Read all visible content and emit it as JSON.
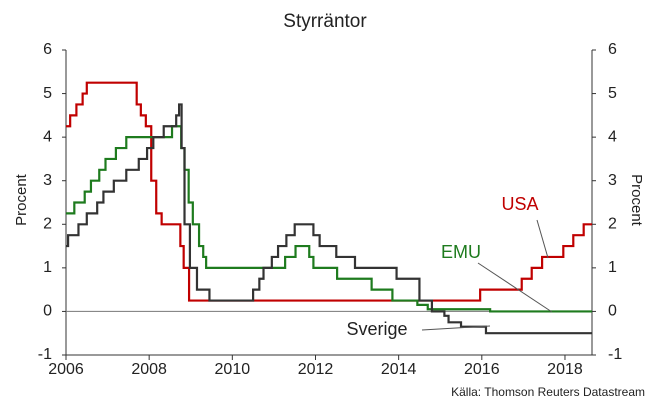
{
  "chart_data": {
    "type": "line",
    "title": "Styrräntor",
    "ylabel": "Procent",
    "y2label": "Procent",
    "source": "Källa: Thomson Reuters Datastream",
    "xlim": [
      2006,
      2018.65
    ],
    "xticks": [
      2006,
      2008,
      2010,
      2012,
      2014,
      2016,
      2018
    ],
    "ylim": [
      -1,
      6
    ],
    "yticks": [
      -1,
      0,
      1,
      2,
      3,
      4,
      5,
      6
    ],
    "y2lim": [
      -1,
      6
    ],
    "y2ticks": [
      -1,
      0,
      1,
      2,
      3,
      4,
      5,
      6
    ],
    "series": [
      {
        "name": "USA",
        "color": "#c00000",
        "x": [
          2006,
          2006.1,
          2006.1,
          2006.25,
          2006.25,
          2006.4,
          2006.4,
          2006.5,
          2006.5,
          2007.7,
          2007.7,
          2007.8,
          2007.8,
          2007.92,
          2007.92,
          2008.05,
          2008.05,
          2008.17,
          2008.17,
          2008.3,
          2008.3,
          2008.75,
          2008.75,
          2008.83,
          2008.83,
          2008.96,
          2008.96,
          2015.96,
          2015.96,
          2016.96,
          2016.96,
          2017.2,
          2017.2,
          2017.45,
          2017.45,
          2017.96,
          2017.96,
          2018.2,
          2018.2,
          2018.45,
          2018.45,
          2018.65
        ],
        "values": [
          4.25,
          4.25,
          4.5,
          4.5,
          4.75,
          4.75,
          5,
          5,
          5.25,
          5.25,
          4.75,
          4.75,
          4.5,
          4.5,
          4.25,
          4.25,
          3,
          3,
          2.25,
          2.25,
          2,
          2,
          1.5,
          1.5,
          1,
          1,
          0.25,
          0.25,
          0.5,
          0.5,
          0.75,
          0.75,
          1,
          1,
          1.25,
          1.25,
          1.5,
          1.5,
          1.75,
          1.75,
          2,
          2
        ]
      },
      {
        "name": "EMU",
        "color": "#1e7b1e",
        "x": [
          2006,
          2006.2,
          2006.2,
          2006.45,
          2006.45,
          2006.6,
          2006.6,
          2006.8,
          2006.8,
          2006.95,
          2006.95,
          2007.2,
          2007.2,
          2007.45,
          2007.45,
          2008.55,
          2008.55,
          2008.77,
          2008.77,
          2008.85,
          2008.85,
          2008.95,
          2008.95,
          2009.05,
          2009.05,
          2009.2,
          2009.2,
          2009.3,
          2009.3,
          2009.37,
          2009.37,
          2011.27,
          2011.27,
          2011.52,
          2011.52,
          2011.85,
          2011.85,
          2011.95,
          2011.95,
          2012.52,
          2012.52,
          2013.35,
          2013.35,
          2013.85,
          2013.85,
          2014.45,
          2014.45,
          2014.7,
          2014.7,
          2016.2,
          2016.2,
          2018.65
        ],
        "values": [
          2.25,
          2.25,
          2.5,
          2.5,
          2.75,
          2.75,
          3,
          3,
          3.25,
          3.25,
          3.5,
          3.5,
          3.75,
          3.75,
          4,
          4,
          4.25,
          4.25,
          3.75,
          3.75,
          3.25,
          3.25,
          2.5,
          2.5,
          2,
          2,
          1.5,
          1.5,
          1.25,
          1.25,
          1,
          1,
          1.25,
          1.25,
          1.5,
          1.5,
          1.25,
          1.25,
          1,
          1,
          0.75,
          0.75,
          0.5,
          0.5,
          0.25,
          0.25,
          0.15,
          0.15,
          0.05,
          0.05,
          0,
          0
        ]
      },
      {
        "name": "Sverige",
        "color": "#333333",
        "x": [
          2006,
          2006.05,
          2006.05,
          2006.3,
          2006.3,
          2006.5,
          2006.5,
          2006.75,
          2006.75,
          2006.9,
          2006.9,
          2007.15,
          2007.15,
          2007.45,
          2007.45,
          2007.75,
          2007.75,
          2007.95,
          2007.95,
          2008.1,
          2008.1,
          2008.35,
          2008.35,
          2008.65,
          2008.65,
          2008.72,
          2008.72,
          2008.78,
          2008.78,
          2008.85,
          2008.85,
          2008.98,
          2008.98,
          2009.15,
          2009.15,
          2009.45,
          2009.45,
          2010.5,
          2010.5,
          2010.65,
          2010.65,
          2010.75,
          2010.75,
          2010.95,
          2010.95,
          2011.1,
          2011.1,
          2011.3,
          2011.3,
          2011.5,
          2011.5,
          2011.95,
          2011.95,
          2012.1,
          2012.1,
          2012.5,
          2012.5,
          2012.95,
          2012.95,
          2013.95,
          2013.95,
          2014.5,
          2014.5,
          2014.8,
          2014.8,
          2015.1,
          2015.1,
          2015.2,
          2015.2,
          2015.5,
          2015.5,
          2016.1,
          2016.1,
          2018.65
        ],
        "values": [
          1.5,
          1.5,
          1.75,
          1.75,
          2,
          2,
          2.25,
          2.25,
          2.5,
          2.5,
          2.75,
          2.75,
          3,
          3,
          3.25,
          3.25,
          3.5,
          3.5,
          3.75,
          3.75,
          4,
          4,
          4.25,
          4.25,
          4.5,
          4.5,
          4.75,
          4.75,
          3.75,
          3.75,
          2,
          2,
          1,
          1,
          0.5,
          0.5,
          0.25,
          0.25,
          0.5,
          0.5,
          0.75,
          0.75,
          1,
          1,
          1.25,
          1.25,
          1.5,
          1.5,
          1.75,
          1.75,
          2,
          2,
          1.75,
          1.75,
          1.5,
          1.5,
          1.25,
          1.25,
          1,
          1,
          0.75,
          0.75,
          0.25,
          0.25,
          0,
          0,
          -0.1,
          -0.1,
          -0.25,
          -0.25,
          -0.35,
          -0.35,
          -0.5,
          -0.5
        ]
      }
    ]
  }
}
